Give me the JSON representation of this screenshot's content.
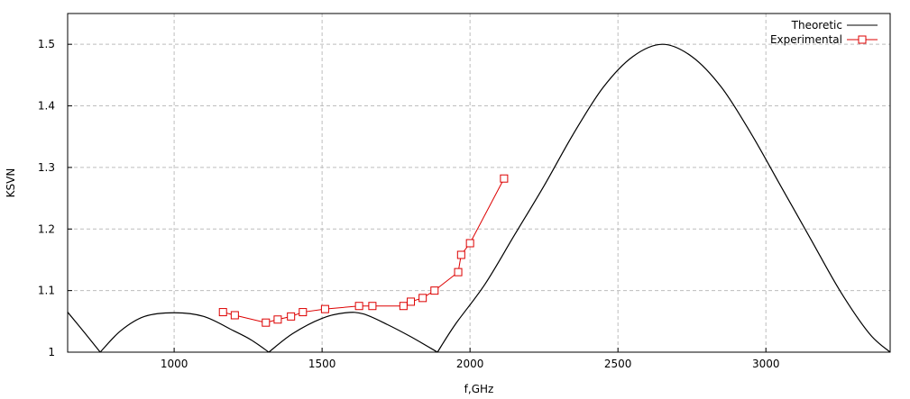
{
  "chart_data": {
    "type": "line",
    "title": "",
    "xlabel": "f,GHz",
    "ylabel": "KSVN",
    "xlim": [
      640,
      3420
    ],
    "ylim": [
      1.0,
      1.55
    ],
    "grid": true,
    "legend_position": "top-right",
    "x_ticks": [
      1000,
      1500,
      2000,
      2500,
      3000
    ],
    "x_tick_labels": [
      "1000",
      "1500",
      "2000",
      "2500",
      "3000"
    ],
    "y_ticks": [
      1.0,
      1.1,
      1.2,
      1.3,
      1.4,
      1.5
    ],
    "y_tick_labels": [
      "1",
      "1.1",
      "1.2",
      "1.3",
      "1.4",
      "1.5"
    ],
    "series": [
      {
        "name": "Theoretic",
        "color": "#000000",
        "marker": "none",
        "x": [
          640,
          700,
          750,
          820,
          900,
          1000,
          1100,
          1200,
          1260,
          1320,
          1400,
          1500,
          1580,
          1640,
          1720,
          1800,
          1890,
          1950,
          2050,
          2150,
          2250,
          2350,
          2450,
          2550,
          2650,
          2750,
          2850,
          2950,
          3050,
          3150,
          3250,
          3350,
          3420
        ],
        "y": [
          1.065,
          1.03,
          1.0,
          1.035,
          1.058,
          1.064,
          1.058,
          1.035,
          1.02,
          1.0,
          1.03,
          1.055,
          1.064,
          1.062,
          1.045,
          1.025,
          1.0,
          1.045,
          1.11,
          1.19,
          1.27,
          1.355,
          1.43,
          1.48,
          1.5,
          1.48,
          1.43,
          1.355,
          1.27,
          1.185,
          1.1,
          1.03,
          1.0
        ]
      },
      {
        "name": "Experimental",
        "color": "#dd0000",
        "marker": "square",
        "x": [
          1165,
          1205,
          1310,
          1350,
          1395,
          1435,
          1510,
          1625,
          1670,
          1775,
          1800,
          1840,
          1880,
          1960,
          1970,
          2000,
          2115
        ],
        "y": [
          1.065,
          1.06,
          1.048,
          1.053,
          1.058,
          1.065,
          1.07,
          1.075,
          1.075,
          1.075,
          1.082,
          1.088,
          1.1,
          1.13,
          1.158,
          1.177,
          1.282
        ]
      }
    ]
  }
}
